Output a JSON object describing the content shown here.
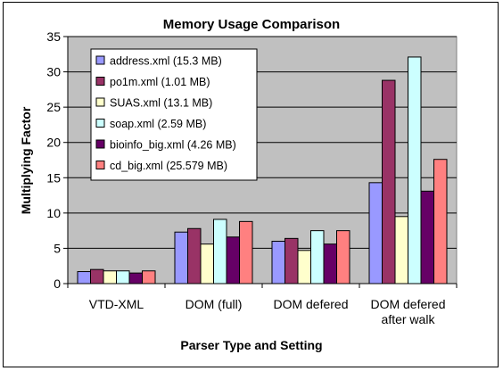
{
  "chart_data": {
    "type": "bar",
    "title": "Memory Usage Comparison",
    "xlabel": "Parser Type and Setting",
    "ylabel": "Multiplying Factor",
    "ylim": [
      0,
      35
    ],
    "yticks": [
      0,
      5,
      10,
      15,
      20,
      25,
      30,
      35
    ],
    "grid": true,
    "legend_position": "top-left",
    "categories": [
      [
        "VTD-XML"
      ],
      [
        "DOM (full)"
      ],
      [
        "DOM defered"
      ],
      [
        "DOM defered",
        "after walk"
      ]
    ],
    "series": [
      {
        "name": "address.xml (15.3 MB)",
        "color": "#9999ff",
        "values": [
          1.7,
          7.3,
          6.0,
          14.3
        ]
      },
      {
        "name": "po1m.xml (1.01 MB)",
        "color": "#993366",
        "values": [
          2.0,
          7.8,
          6.4,
          28.8
        ]
      },
      {
        "name": "SUAS.xml (13.1 MB)",
        "color": "#ffffcc",
        "values": [
          1.8,
          5.6,
          4.7,
          9.5
        ]
      },
      {
        "name": "soap.xml (2.59 MB)",
        "color": "#ccffff",
        "values": [
          1.8,
          9.1,
          7.5,
          32.1
        ]
      },
      {
        "name": "bioinfo_big.xml (4.26 MB)",
        "color": "#660066",
        "values": [
          1.5,
          6.6,
          5.6,
          13.1
        ]
      },
      {
        "name": "cd_big.xml (25.579 MB)",
        "color": "#ff8080",
        "values": [
          1.8,
          8.8,
          7.5,
          17.6
        ]
      }
    ],
    "plot_background": "#c0c0c0"
  }
}
